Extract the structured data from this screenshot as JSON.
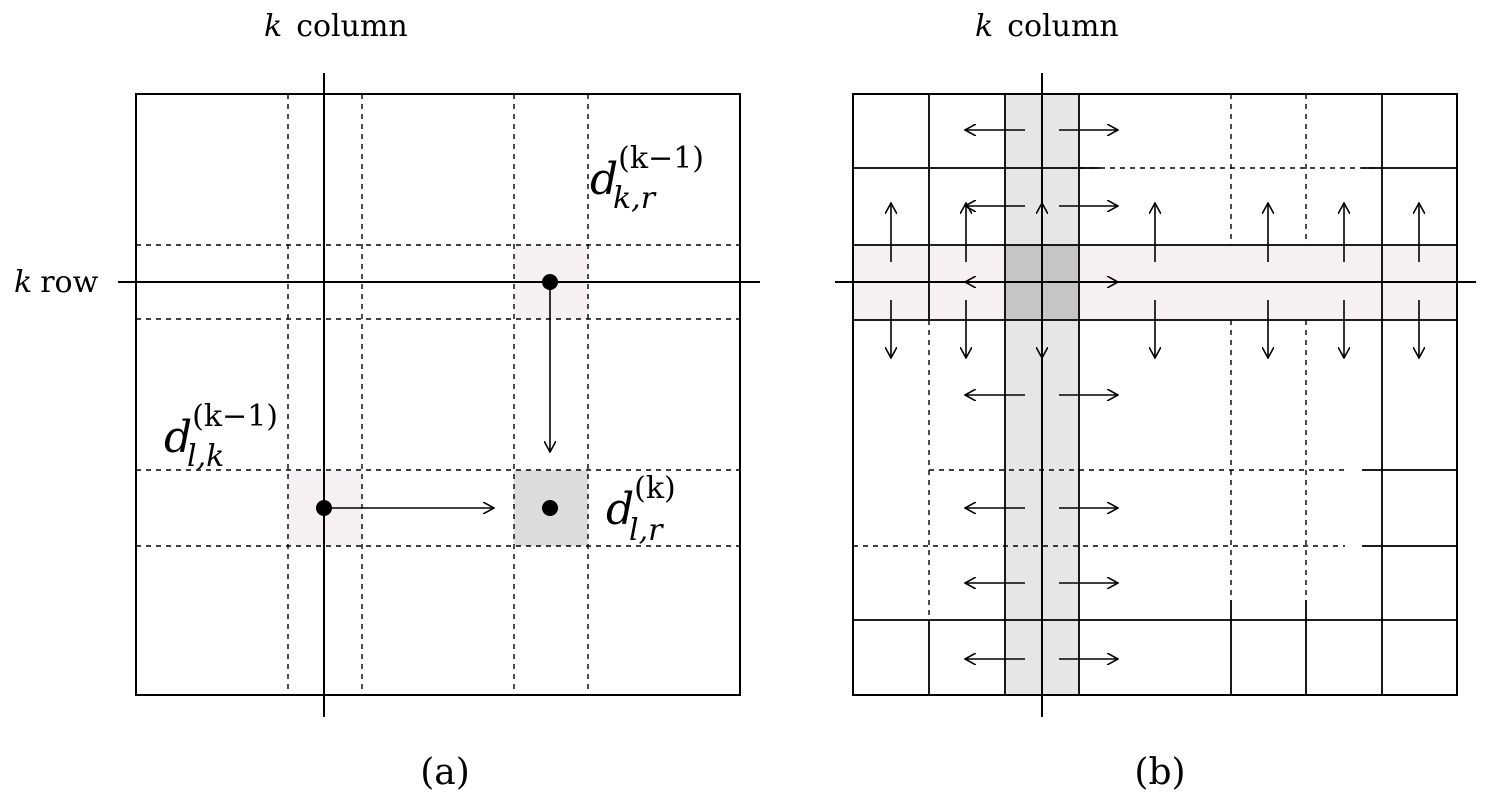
{
  "panel_a": {
    "caption": "(a)",
    "column_label": "column",
    "row_label": "row",
    "k_symbol": "k",
    "d_kr": {
      "base": "d",
      "sup": "(k−1)",
      "sub": "k,r"
    },
    "d_lk": {
      "base": "d",
      "sup": "(k−1)",
      "sub": "l,k"
    },
    "d_lr": {
      "base": "d",
      "sup": "(k)",
      "sub": "l,r"
    }
  },
  "panel_b": {
    "caption": "(b)",
    "column_label": "column",
    "k_symbol": "k"
  },
  "colors": {
    "line": "#000000",
    "pink_highlight": "#f6f0f5",
    "gray_highlight": "#dcdcdc",
    "column_highlight": "#e6e6e6",
    "intersection": "#c6c4c6"
  }
}
